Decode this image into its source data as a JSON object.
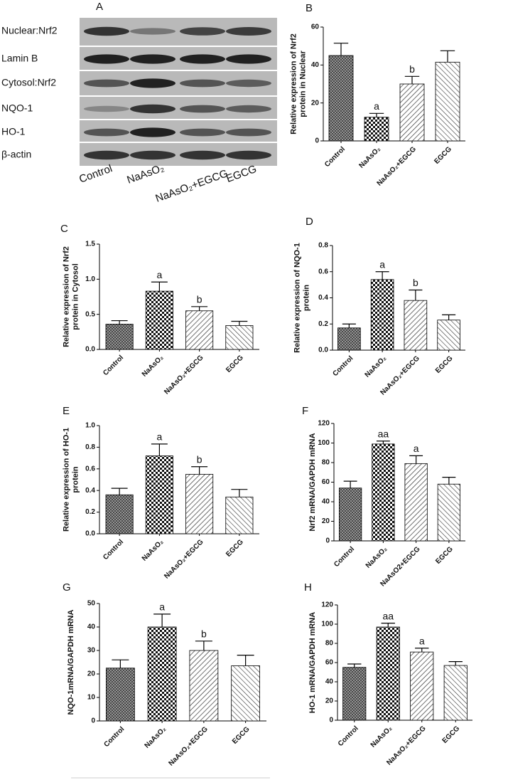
{
  "blot": {
    "panel": "A",
    "rows": [
      "Nuclear:Nrf2",
      "Lamin B",
      "Cytosol:Nrf2",
      "NQO-1",
      "HO-1",
      "β-actin"
    ],
    "columns": [
      "Control",
      "NaAsO₂",
      "NaAsO₂+EGCG",
      "EGCG"
    ]
  },
  "bar_patterns": [
    "crosshatch",
    "checker",
    "hatch-right",
    "hatch-left"
  ],
  "chart_data": [
    {
      "type": "bar",
      "panel": "B",
      "ylabel": [
        "Relative expression of Nrf2",
        "protein in Nuclear"
      ],
      "categories": [
        "Control",
        "NaAsO₂",
        "NaAsO₂+EGCG",
        "EGCG"
      ],
      "values": [
        45,
        12.5,
        30,
        41.5
      ],
      "errors": [
        6.5,
        2,
        4,
        6
      ],
      "annotations": [
        null,
        "a",
        "b",
        null
      ],
      "ylim": [
        0,
        60
      ],
      "yticks": [
        0,
        20,
        40,
        60
      ]
    },
    {
      "type": "bar",
      "panel": "C",
      "ylabel": [
        "Relative expression of Nrf2",
        "protein in Cytosol"
      ],
      "categories": [
        "Control",
        "NaAsO₂",
        "NaAsO₂+EGCG",
        "EGCG"
      ],
      "values": [
        0.36,
        0.83,
        0.55,
        0.34
      ],
      "errors": [
        0.05,
        0.13,
        0.06,
        0.06
      ],
      "annotations": [
        null,
        "a",
        "b",
        null
      ],
      "ylim": [
        0,
        1.5
      ],
      "yticks": [
        {
          "value": 0,
          "label": "0.0"
        },
        0.5,
        {
          "value": 1,
          "label": "1.0"
        },
        1.5
      ]
    },
    {
      "type": "bar",
      "panel": "D",
      "ylabel": [
        "Relative expression of NQO-1",
        "protein"
      ],
      "categories": [
        "Control",
        "NaAsO₂",
        "NaAsO₂+EGCG",
        "EGCG"
      ],
      "values": [
        0.17,
        0.54,
        0.38,
        0.23
      ],
      "errors": [
        0.03,
        0.06,
        0.08,
        0.04
      ],
      "annotations": [
        null,
        "a",
        "b",
        null
      ],
      "ylim": [
        0,
        0.8
      ],
      "yticks": [
        {
          "value": 0,
          "label": "0.0"
        },
        0.2,
        0.4,
        0.6,
        0.8
      ]
    },
    {
      "type": "bar",
      "panel": "E",
      "ylabel": [
        "Relative expression of HO-1",
        "protein"
      ],
      "categories": [
        "Control",
        "NaAsO₂",
        "NaAsO₂+EGCG",
        "EGCG"
      ],
      "values": [
        0.36,
        0.72,
        0.55,
        0.34
      ],
      "errors": [
        0.06,
        0.11,
        0.07,
        0.07
      ],
      "annotations": [
        null,
        "a",
        "b",
        null
      ],
      "ylim": [
        0,
        1
      ],
      "yticks": [
        {
          "value": 0,
          "label": "0.0"
        },
        0.2,
        0.4,
        0.6,
        0.8,
        {
          "value": 1,
          "label": "1.0"
        }
      ]
    },
    {
      "type": "bar",
      "panel": "F",
      "ylabel": [
        "Nrf2 mRNA/GAPDH mRNA"
      ],
      "categories": [
        "Control",
        "NaAsO₂",
        "NaAsO2+EGCG",
        "EGCG"
      ],
      "values": [
        54,
        99,
        79,
        58
      ],
      "errors": [
        7,
        3,
        8,
        7
      ],
      "annotations": [
        null,
        "aa",
        "a",
        null
      ],
      "ylim": [
        0,
        120
      ],
      "yticks": [
        0,
        20,
        40,
        60,
        80,
        100,
        120
      ]
    },
    {
      "type": "bar",
      "panel": "G",
      "ylabel": [
        "NQO-1mRNA/GAPDH mRNA"
      ],
      "categories": [
        "Control",
        "NaAsO₂",
        "NaAsO₂+EGCG",
        "EGCG"
      ],
      "values": [
        22.5,
        40,
        30,
        23.5
      ],
      "errors": [
        3.5,
        5.5,
        4,
        4.5
      ],
      "annotations": [
        null,
        "a",
        "b",
        null
      ],
      "ylim": [
        0,
        50
      ],
      "yticks": [
        0,
        10,
        20,
        30,
        40,
        50
      ]
    },
    {
      "type": "bar",
      "panel": "H",
      "ylabel": [
        "HO-1 mRNA/GAPDH mRNA"
      ],
      "categories": [
        "Control",
        "NaAsO₂",
        "NaAsO₂+EGCG",
        "EGCG"
      ],
      "values": [
        55,
        97,
        71,
        57
      ],
      "errors": [
        3.5,
        4,
        4,
        4
      ],
      "annotations": [
        null,
        "aa",
        "a",
        null
      ],
      "ylim": [
        0,
        120
      ],
      "yticks": [
        0,
        20,
        40,
        60,
        80,
        100,
        120
      ]
    }
  ]
}
